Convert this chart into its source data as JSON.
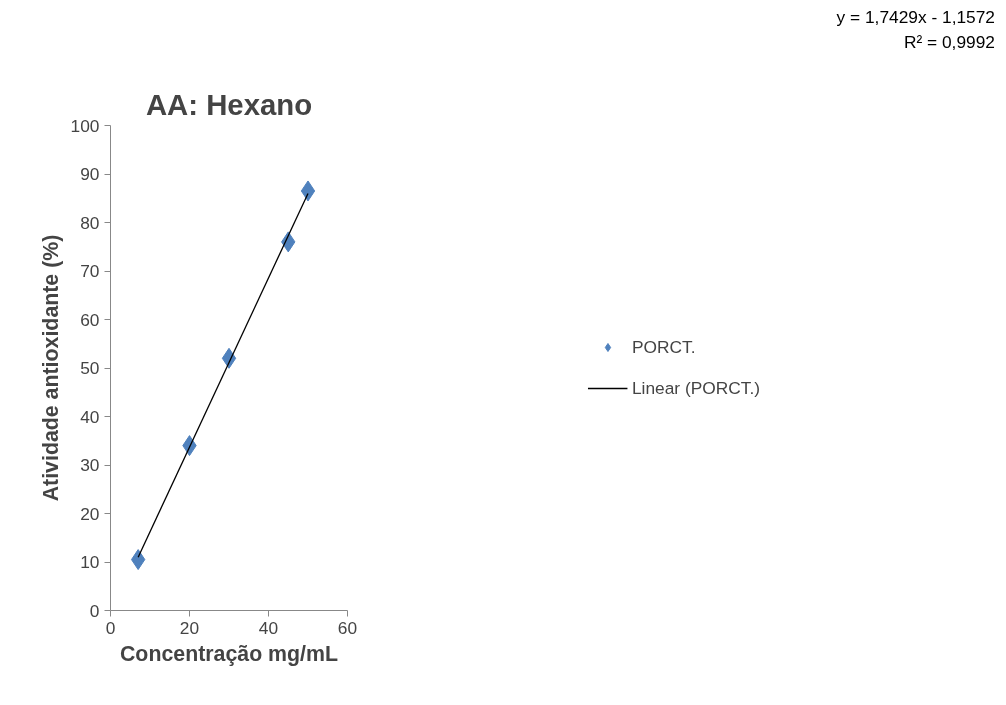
{
  "chart_data": {
    "type": "scatter",
    "title": "AA: Hexano",
    "xlabel": "Concentração mg/mL",
    "ylabel": "Atividade antioxidante (%)",
    "x": [
      7,
      20,
      30,
      45,
      50
    ],
    "series": [
      {
        "name": "PORCT.",
        "color": "#4f81bd",
        "values": [
          10.5,
          34,
          52,
          76,
          86.5
        ],
        "marker": "diamond"
      },
      {
        "name": "Linear (PORCT.)",
        "type": "line",
        "color": "#000000",
        "x": [
          7,
          50
        ],
        "values": [
          11,
          86
        ],
        "marker": "none"
      }
    ],
    "xlim": [
      0,
      60
    ],
    "xticks": [
      0,
      20,
      40,
      60
    ],
    "ylim": [
      0,
      100
    ],
    "yticks": [
      0,
      10,
      20,
      30,
      40,
      50,
      60,
      70,
      80,
      90,
      100
    ],
    "grid": false,
    "legend": "right",
    "annotations": [
      "y = 1,7429x - 1,1572",
      "R² = 0,9992"
    ]
  }
}
